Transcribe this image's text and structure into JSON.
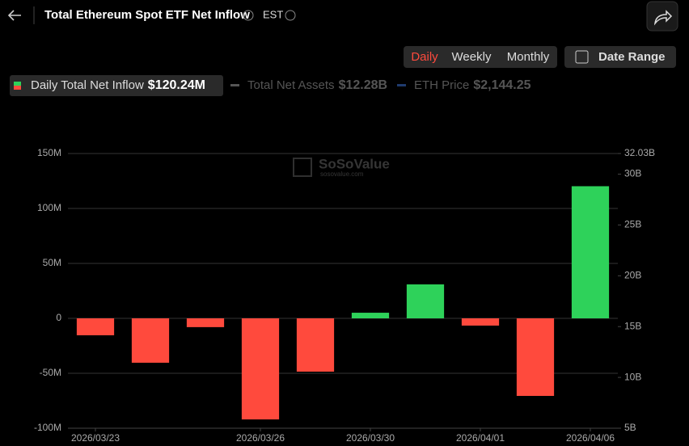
{
  "header": {
    "title": "Total Ethereum Spot ETF Net Inflow",
    "timezone": "EST"
  },
  "tabs": [
    "Daily",
    "Weekly",
    "Monthly"
  ],
  "date_range": "Date Range",
  "watermark": {
    "brand": "SoSoValue",
    "site": "sosovalue.com"
  },
  "chart_data": {
    "type": "bar",
    "legend": [
      {
        "name": "Daily Total Net Inflow",
        "value": "$120.24M",
        "active": true,
        "color": "#2ed25a"
      },
      {
        "name": "Total Net Assets",
        "value": "$12.28B",
        "active": false,
        "color": "#555555"
      },
      {
        "name": "ETH Price",
        "value": "$2,144.25",
        "active": false,
        "color": "#1f3b6e"
      }
    ],
    "categories": [
      "2026/03/23",
      null,
      null,
      "2026/03/26",
      null,
      "2026/03/30",
      null,
      "2026/04/01",
      null,
      "2026/04/06"
    ],
    "series": [
      {
        "name": "Daily Total Net Inflow",
        "positive_color": "#2ed25a",
        "negative_color": "#ff4a3d",
        "values": [
          -15.4,
          -40.4,
          -8,
          -92,
          -48.5,
          5.1,
          30.9,
          -6.6,
          -70.6,
          120.24
        ]
      }
    ],
    "ylim": [
      -100,
      150
    ],
    "yticks": [
      {
        "value": -100,
        "label": "-100M"
      },
      {
        "value": -50,
        "label": "-50M"
      },
      0,
      {
        "value": 50,
        "label": "50M"
      },
      {
        "value": 100,
        "label": "100M"
      },
      {
        "value": 150,
        "label": "150M"
      }
    ],
    "y2lim": [
      5,
      32.03
    ],
    "y2ticks": [
      {
        "value": 5,
        "label": "5B"
      },
      {
        "value": 10,
        "label": "10B"
      },
      {
        "value": 15,
        "label": "15B"
      },
      {
        "value": 20,
        "label": "20B"
      },
      {
        "value": 25,
        "label": "25B"
      },
      {
        "value": 30,
        "label": "30B"
      },
      {
        "value": 32.03,
        "label": "32.03B"
      }
    ],
    "grid": true
  }
}
